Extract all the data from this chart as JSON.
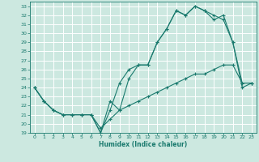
{
  "title": "",
  "xlabel": "Humidex (Indice chaleur)",
  "ylabel": "",
  "bg_color": "#cce8e0",
  "grid_color": "#ffffff",
  "line_color": "#1a7a6e",
  "xlim": [
    -0.5,
    23.5
  ],
  "ylim": [
    19,
    33.5
  ],
  "xticks": [
    0,
    1,
    2,
    3,
    4,
    5,
    6,
    7,
    8,
    9,
    10,
    11,
    12,
    13,
    14,
    15,
    16,
    17,
    18,
    19,
    20,
    21,
    22,
    23
  ],
  "yticks": [
    19,
    20,
    21,
    22,
    23,
    24,
    25,
    26,
    27,
    28,
    29,
    30,
    31,
    32,
    33
  ],
  "series1_x": [
    0,
    1,
    2,
    3,
    4,
    5,
    6,
    7,
    8,
    9,
    10,
    11,
    12,
    13,
    14,
    15,
    16,
    17,
    18,
    19,
    20,
    21,
    22,
    23
  ],
  "series1_y": [
    24.0,
    22.5,
    21.5,
    21.0,
    21.0,
    21.0,
    21.0,
    19.0,
    21.5,
    24.5,
    26.0,
    26.5,
    26.5,
    29.0,
    30.5,
    32.5,
    32.0,
    33.0,
    32.5,
    32.0,
    31.5,
    29.0,
    24.0,
    24.5
  ],
  "series2_x": [
    0,
    1,
    2,
    3,
    4,
    5,
    6,
    7,
    8,
    9,
    10,
    11,
    12,
    13,
    14,
    15,
    16,
    17,
    18,
    19,
    20,
    21,
    22,
    23
  ],
  "series2_y": [
    24.0,
    22.5,
    21.5,
    21.0,
    21.0,
    21.0,
    21.0,
    19.0,
    22.5,
    21.5,
    25.0,
    26.5,
    26.5,
    29.0,
    30.5,
    32.5,
    32.0,
    33.0,
    32.5,
    31.5,
    32.0,
    29.0,
    24.5,
    24.5
  ],
  "series3_x": [
    0,
    1,
    2,
    3,
    4,
    5,
    6,
    7,
    8,
    9,
    10,
    11,
    12,
    13,
    14,
    15,
    16,
    17,
    18,
    19,
    20,
    21,
    22,
    23
  ],
  "series3_y": [
    24.0,
    22.5,
    21.5,
    21.0,
    21.0,
    21.0,
    21.0,
    19.5,
    20.5,
    21.5,
    22.0,
    22.5,
    23.0,
    23.5,
    24.0,
    24.5,
    25.0,
    25.5,
    25.5,
    26.0,
    26.5,
    26.5,
    24.5,
    24.5
  ]
}
